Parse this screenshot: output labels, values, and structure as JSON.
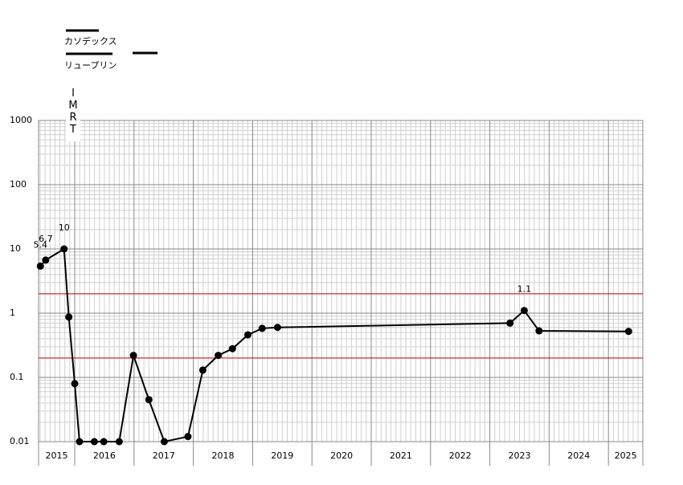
{
  "chart_data": {
    "type": "line",
    "treatments": [
      "カソデックス",
      "リュープリン",
      "IMRT"
    ],
    "x": [
      2015.42,
      2015.51,
      2015.82,
      2015.9,
      2016.0,
      2016.08,
      2016.33,
      2016.49,
      2016.75,
      2016.99,
      2017.25,
      2017.51,
      2017.91,
      2018.16,
      2018.42,
      2018.66,
      2018.92,
      2019.16,
      2019.42,
      2023.34,
      2023.58,
      2023.83,
      2025.34
    ],
    "values": [
      5.4,
      6.7,
      10,
      0.87,
      0.08,
      0.01,
      0.01,
      0.01,
      0.01,
      0.22,
      0.045,
      0.01,
      0.012,
      0.13,
      0.22,
      0.28,
      0.46,
      0.58,
      0.6,
      0.7,
      1.1,
      0.53,
      0.52
    ],
    "value_labels": [
      "5.4",
      "6.7",
      "10",
      null,
      null,
      null,
      null,
      null,
      null,
      null,
      null,
      null,
      null,
      null,
      null,
      null,
      null,
      null,
      null,
      null,
      "1.1",
      null,
      null
    ],
    "color": "#000000",
    "xlim": [
      2015.39,
      2025.58
    ],
    "xticks": [
      2015,
      2016,
      2017,
      2018,
      2019,
      2020,
      2021,
      2022,
      2023,
      2024,
      2025
    ],
    "ylim": [
      0.01,
      1000
    ],
    "yticks": [
      0.01,
      0.1,
      1,
      10,
      100,
      1000
    ],
    "log_y": true,
    "grid": true,
    "hlines": [
      {
        "value": 2,
        "color": "#d00000"
      },
      {
        "value": 0.2,
        "color": "#d00000"
      }
    ]
  }
}
